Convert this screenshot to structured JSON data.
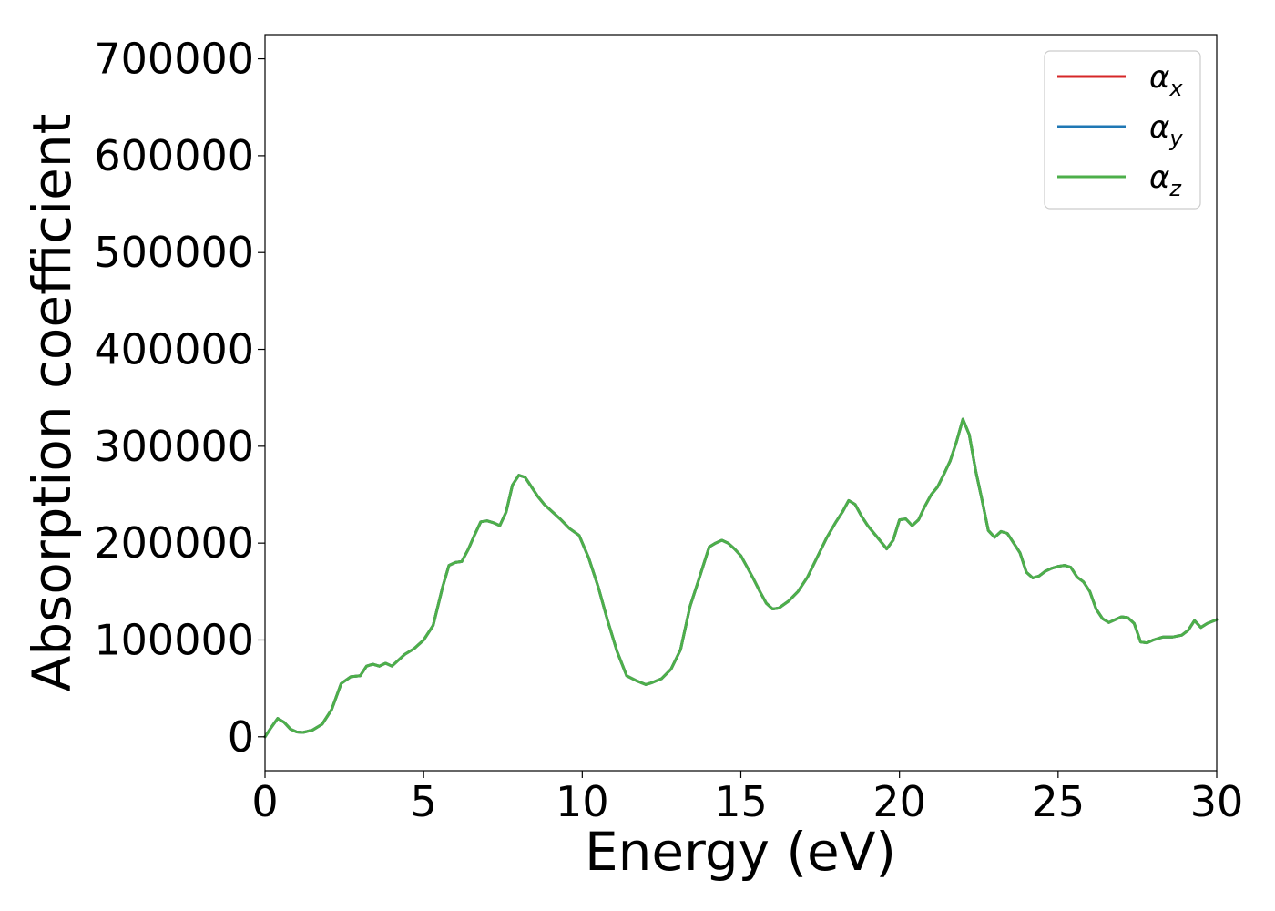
{
  "chart_data": {
    "type": "line",
    "title": "",
    "xlabel": "Energy (eV)",
    "ylabel": "Absorption coefficient",
    "xlim": [
      0,
      30
    ],
    "ylim": [
      -35000,
      725000
    ],
    "xticks": [
      0,
      5,
      10,
      15,
      20,
      25,
      30
    ],
    "yticks": [
      0,
      100000,
      200000,
      300000,
      400000,
      500000,
      600000,
      700000
    ],
    "grid": false,
    "legend_position": "top-right",
    "x": [
      0.0,
      0.2,
      0.4,
      0.6,
      0.8,
      1.0,
      1.2,
      1.5,
      1.8,
      2.1,
      2.4,
      2.7,
      3.0,
      3.2,
      3.4,
      3.6,
      3.8,
      4.0,
      4.2,
      4.4,
      4.7,
      5.0,
      5.3,
      5.6,
      5.8,
      6.0,
      6.2,
      6.4,
      6.6,
      6.8,
      7.0,
      7.2,
      7.4,
      7.6,
      7.8,
      8.0,
      8.2,
      8.4,
      8.6,
      8.8,
      9.0,
      9.3,
      9.6,
      9.9,
      10.2,
      10.5,
      10.8,
      11.1,
      11.4,
      11.7,
      12.0,
      12.2,
      12.5,
      12.8,
      13.1,
      13.4,
      13.7,
      14.0,
      14.2,
      14.4,
      14.6,
      14.8,
      15.0,
      15.2,
      15.4,
      15.6,
      15.8,
      16.0,
      16.2,
      16.5,
      16.8,
      17.1,
      17.4,
      17.7,
      18.0,
      18.2,
      18.4,
      18.6,
      18.8,
      19.0,
      19.2,
      19.4,
      19.6,
      19.8,
      20.0,
      20.2,
      20.4,
      20.6,
      20.8,
      21.0,
      21.2,
      21.4,
      21.6,
      21.8,
      22.0,
      22.2,
      22.4,
      22.6,
      22.8,
      23.0,
      23.2,
      23.4,
      23.6,
      23.8,
      24.0,
      24.2,
      24.4,
      24.6,
      24.8,
      25.0,
      25.2,
      25.4,
      25.6,
      25.8,
      26.0,
      26.2,
      26.4,
      26.6,
      26.8,
      27.0,
      27.2,
      27.4,
      27.6,
      27.8,
      28.0,
      28.3,
      28.6,
      28.9,
      29.1,
      29.3,
      29.5,
      29.7,
      30.0
    ],
    "series": [
      {
        "name": "α_x",
        "color": "#d62728",
        "values": [
          0,
          10000,
          19000,
          15000,
          8000,
          5000,
          4500,
          7000,
          13000,
          28000,
          55000,
          62000,
          63000,
          73000,
          75000,
          73000,
          76000,
          73000,
          79000,
          85000,
          91000,
          100000,
          115000,
          155000,
          177000,
          180000,
          181000,
          193000,
          208000,
          222000,
          223000,
          221000,
          218000,
          232000,
          260000,
          270000,
          268000,
          258000,
          248000,
          240000,
          234000,
          225000,
          215000,
          208000,
          185000,
          155000,
          120000,
          88000,
          63000,
          58000,
          54000,
          56000,
          60000,
          70000,
          90000,
          135000,
          165000,
          196000,
          200000,
          203000,
          200000,
          194000,
          187000,
          175000,
          163000,
          150000,
          138000,
          132000,
          133000,
          140000,
          150000,
          165000,
          185000,
          205000,
          222000,
          232000,
          244000,
          240000,
          228000,
          218000,
          210000,
          202000,
          194000,
          203000,
          224000,
          225000,
          218000,
          224000,
          238000,
          250000,
          258000,
          271000,
          285000,
          305000,
          328000,
          312000,
          275000,
          245000,
          213000,
          206000,
          212000,
          210000,
          200000,
          190000,
          170000,
          164000,
          166000,
          171000,
          174000,
          176000,
          177000,
          175000,
          165000,
          160000,
          150000,
          132000,
          122000,
          118000,
          121000,
          124000,
          123000,
          117000,
          98000,
          97000,
          100000,
          103000,
          103000,
          105000,
          110000,
          120000,
          113000,
          117000,
          121000
        ]
      },
      {
        "name": "α_y",
        "color": "#1f77b4",
        "values": [
          0,
          10000,
          19000,
          15000,
          8000,
          5000,
          4500,
          7000,
          13000,
          28000,
          55000,
          62000,
          63000,
          73000,
          75000,
          73000,
          76000,
          73000,
          79000,
          85000,
          91000,
          100000,
          115000,
          155000,
          177000,
          180000,
          181000,
          193000,
          208000,
          222000,
          223000,
          221000,
          218000,
          232000,
          260000,
          270000,
          268000,
          258000,
          248000,
          240000,
          234000,
          225000,
          215000,
          208000,
          185000,
          155000,
          120000,
          88000,
          63000,
          58000,
          54000,
          56000,
          60000,
          70000,
          90000,
          135000,
          165000,
          196000,
          200000,
          203000,
          200000,
          194000,
          187000,
          175000,
          163000,
          150000,
          138000,
          132000,
          133000,
          140000,
          150000,
          165000,
          185000,
          205000,
          222000,
          232000,
          244000,
          240000,
          228000,
          218000,
          210000,
          202000,
          194000,
          203000,
          224000,
          225000,
          218000,
          224000,
          238000,
          250000,
          258000,
          271000,
          285000,
          305000,
          328000,
          312000,
          275000,
          245000,
          213000,
          206000,
          212000,
          210000,
          200000,
          190000,
          170000,
          164000,
          166000,
          171000,
          174000,
          176000,
          177000,
          175000,
          165000,
          160000,
          150000,
          132000,
          122000,
          118000,
          121000,
          124000,
          123000,
          117000,
          98000,
          97000,
          100000,
          103000,
          103000,
          105000,
          110000,
          120000,
          113000,
          117000,
          121000
        ]
      },
      {
        "name": "α_z",
        "color": "#4daf4a",
        "values": [
          0,
          10000,
          19000,
          15000,
          8000,
          5000,
          4500,
          7000,
          13000,
          28000,
          55000,
          62000,
          63000,
          73000,
          75000,
          73000,
          76000,
          73000,
          79000,
          85000,
          91000,
          100000,
          115000,
          155000,
          177000,
          180000,
          181000,
          193000,
          208000,
          222000,
          223000,
          221000,
          218000,
          232000,
          260000,
          270000,
          268000,
          258000,
          248000,
          240000,
          234000,
          225000,
          215000,
          208000,
          185000,
          155000,
          120000,
          88000,
          63000,
          58000,
          54000,
          56000,
          60000,
          70000,
          90000,
          135000,
          165000,
          196000,
          200000,
          203000,
          200000,
          194000,
          187000,
          175000,
          163000,
          150000,
          138000,
          132000,
          133000,
          140000,
          150000,
          165000,
          185000,
          205000,
          222000,
          232000,
          244000,
          240000,
          228000,
          218000,
          210000,
          202000,
          194000,
          203000,
          224000,
          225000,
          218000,
          224000,
          238000,
          250000,
          258000,
          271000,
          285000,
          305000,
          328000,
          312000,
          275000,
          245000,
          213000,
          206000,
          212000,
          210000,
          200000,
          190000,
          170000,
          164000,
          166000,
          171000,
          174000,
          176000,
          177000,
          175000,
          165000,
          160000,
          150000,
          132000,
          122000,
          118000,
          121000,
          124000,
          123000,
          117000,
          98000,
          97000,
          100000,
          103000,
          103000,
          105000,
          110000,
          120000,
          113000,
          117000,
          121000
        ]
      }
    ],
    "legend": [
      {
        "symbol": "α",
        "subscript": "x"
      },
      {
        "symbol": "α",
        "subscript": "y"
      },
      {
        "symbol": "α",
        "subscript": "z"
      }
    ]
  }
}
